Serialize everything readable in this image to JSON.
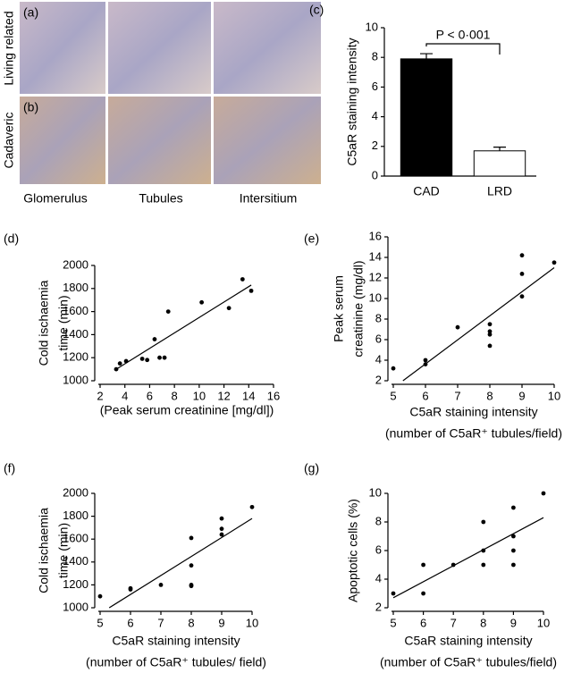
{
  "figure": {
    "panel_a": "(a)",
    "panel_b": "(b)",
    "row_labels": [
      "Living related",
      "Cadaveric"
    ],
    "column_labels": [
      "Glomerulus",
      "Tubules",
      "Intersitium"
    ]
  },
  "chart_data": [
    {
      "type": "bar",
      "panel": "(c)",
      "ylabel": [
        "C5aR staining intensity"
      ],
      "categories": [
        "CAD",
        "LRD"
      ],
      "values": [
        7.9,
        1.7
      ],
      "errors": [
        0.35,
        0.25
      ],
      "colors": [
        "#000000",
        "#ffffff"
      ],
      "ylim": [
        0,
        10
      ],
      "yticks": [
        0,
        2,
        4,
        6,
        8,
        10
      ],
      "annotation": "P < 0·001"
    },
    {
      "type": "scatter",
      "panel": "(d)",
      "ylabel": [
        "Cold ischaemia",
        "time (min)"
      ],
      "xlabel": [
        "(Peak serum creatinine [mg/dl])"
      ],
      "x": [
        3.3,
        3.6,
        4.1,
        5.4,
        5.8,
        6.4,
        6.8,
        7.2,
        7.5,
        10.2,
        12.4,
        13.5,
        14.2
      ],
      "values": [
        1100,
        1150,
        1170,
        1190,
        1180,
        1360,
        1200,
        1200,
        1600,
        1680,
        1630,
        1880,
        1780
      ],
      "trendline": {
        "x": [
          3.3,
          14.2
        ],
        "values": [
          1100,
          1830
        ]
      },
      "xlim": [
        2,
        16
      ],
      "xticks": [
        2,
        4,
        6,
        8,
        10,
        12,
        14,
        16
      ],
      "ylim": [
        1000,
        2000
      ],
      "yticks": [
        1000,
        1200,
        1400,
        1600,
        1800,
        2000
      ]
    },
    {
      "type": "scatter",
      "panel": "(e)",
      "ylabel": [
        "Peak serum",
        "creatinine (mg/dl)"
      ],
      "xlabel": [
        "C5aR staining intensity",
        "(number of C5aR⁺ tubules/field)"
      ],
      "x": [
        5,
        6,
        6,
        7,
        8,
        8,
        8,
        8,
        9,
        9,
        9,
        10
      ],
      "values": [
        3.2,
        4.0,
        3.6,
        7.2,
        7.5,
        6.8,
        6.5,
        5.4,
        14.2,
        12.4,
        10.2,
        13.5
      ],
      "trendline": {
        "x": [
          5.3,
          10
        ],
        "values": [
          2,
          13
        ]
      },
      "xlim": [
        5,
        10
      ],
      "xticks": [
        5,
        6,
        7,
        8,
        9,
        10
      ],
      "ylim": [
        2,
        16
      ],
      "yticks": [
        2,
        4,
        6,
        8,
        10,
        12,
        14,
        16
      ]
    },
    {
      "type": "scatter",
      "panel": "(f)",
      "ylabel": [
        "Cold ischaemia",
        "time (min)"
      ],
      "xlabel": [
        "C5aR staining intensity",
        "(number of C5aR⁺ tubules/ field)"
      ],
      "x": [
        5,
        6,
        6,
        7,
        8,
        8,
        8,
        8,
        9,
        9,
        9,
        10
      ],
      "values": [
        1100,
        1170,
        1160,
        1200,
        1610,
        1370,
        1200,
        1190,
        1780,
        1690,
        1640,
        1880
      ],
      "trendline": {
        "x": [
          5.3,
          10
        ],
        "values": [
          1000,
          1780
        ]
      },
      "xlim": [
        5,
        10
      ],
      "xticks": [
        5,
        6,
        7,
        8,
        9,
        10
      ],
      "ylim": [
        1000,
        2000
      ],
      "yticks": [
        1000,
        1200,
        1400,
        1600,
        1800,
        2000
      ]
    },
    {
      "type": "scatter",
      "panel": "(g)",
      "ylabel": [
        "Apoptotic cells (%)"
      ],
      "xlabel": [
        "C5aR staining intensity",
        "(number of C5aR⁺ tubules/field)"
      ],
      "x": [
        5,
        6,
        6,
        7,
        8,
        8,
        8,
        9,
        9,
        9,
        9,
        10
      ],
      "values": [
        3,
        5,
        3,
        5,
        8,
        6,
        5,
        9,
        7,
        6,
        5,
        10
      ],
      "trendline": {
        "x": [
          5,
          10
        ],
        "values": [
          2.7,
          8.3
        ]
      },
      "xlim": [
        5,
        10
      ],
      "xticks": [
        5,
        6,
        7,
        8,
        9,
        10
      ],
      "ylim": [
        2,
        10
      ],
      "yticks": [
        2,
        4,
        6,
        8,
        10
      ]
    }
  ]
}
